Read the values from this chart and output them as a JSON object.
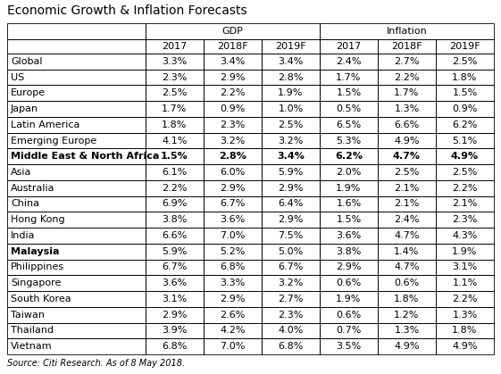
{
  "title": "Economic Growth & Inflation Forecasts",
  "source": "Source: Citi Research. As of 8 May 2018.",
  "rows": [
    [
      "Global",
      "3.3%",
      "3.4%",
      "3.4%",
      "2.4%",
      "2.7%",
      "2.5%"
    ],
    [
      "US",
      "2.3%",
      "2.9%",
      "2.8%",
      "1.7%",
      "2.2%",
      "1.8%"
    ],
    [
      "Europe",
      "2.5%",
      "2.2%",
      "1.9%",
      "1.5%",
      "1.7%",
      "1.5%"
    ],
    [
      "Japan",
      "1.7%",
      "0.9%",
      "1.0%",
      "0.5%",
      "1.3%",
      "0.9%"
    ],
    [
      "Latin America",
      "1.8%",
      "2.3%",
      "2.5%",
      "6.5%",
      "6.6%",
      "6.2%"
    ],
    [
      "Emerging Europe",
      "4.1%",
      "3.2%",
      "3.2%",
      "5.3%",
      "4.9%",
      "5.1%"
    ],
    [
      "Middle East & North Africa",
      "1.5%",
      "2.8%",
      "3.4%",
      "6.2%",
      "4.7%",
      "4.9%"
    ],
    [
      "Asia",
      "6.1%",
      "6.0%",
      "5.9%",
      "2.0%",
      "2.5%",
      "2.5%"
    ],
    [
      "Australia",
      "2.2%",
      "2.9%",
      "2.9%",
      "1.9%",
      "2.1%",
      "2.2%"
    ],
    [
      "China",
      "6.9%",
      "6.7%",
      "6.4%",
      "1.6%",
      "2.1%",
      "2.1%"
    ],
    [
      "Hong Kong",
      "3.8%",
      "3.6%",
      "2.9%",
      "1.5%",
      "2.4%",
      "2.3%"
    ],
    [
      "India",
      "6.6%",
      "7.0%",
      "7.5%",
      "3.6%",
      "4.7%",
      "4.3%"
    ],
    [
      "Malaysia",
      "5.9%",
      "5.2%",
      "5.0%",
      "3.8%",
      "1.4%",
      "1.9%"
    ],
    [
      "Philippines",
      "6.7%",
      "6.8%",
      "6.7%",
      "2.9%",
      "4.7%",
      "3.1%"
    ],
    [
      "Singapore",
      "3.6%",
      "3.3%",
      "3.2%",
      "0.6%",
      "0.6%",
      "1.1%"
    ],
    [
      "South Korea",
      "3.1%",
      "2.9%",
      "2.7%",
      "1.9%",
      "1.8%",
      "2.2%"
    ],
    [
      "Taiwan",
      "2.9%",
      "2.6%",
      "2.3%",
      "0.6%",
      "1.2%",
      "1.3%"
    ],
    [
      "Thailand",
      "3.9%",
      "4.2%",
      "4.0%",
      "0.7%",
      "1.3%",
      "1.8%"
    ],
    [
      "Vietnam",
      "6.8%",
      "7.0%",
      "6.8%",
      "3.5%",
      "4.9%",
      "4.9%"
    ]
  ],
  "bold_name_rows": [
    6,
    12
  ],
  "background_color": "#ffffff",
  "title_fontsize": 10,
  "header_fontsize": 8,
  "cell_fontsize": 8,
  "source_fontsize": 7
}
